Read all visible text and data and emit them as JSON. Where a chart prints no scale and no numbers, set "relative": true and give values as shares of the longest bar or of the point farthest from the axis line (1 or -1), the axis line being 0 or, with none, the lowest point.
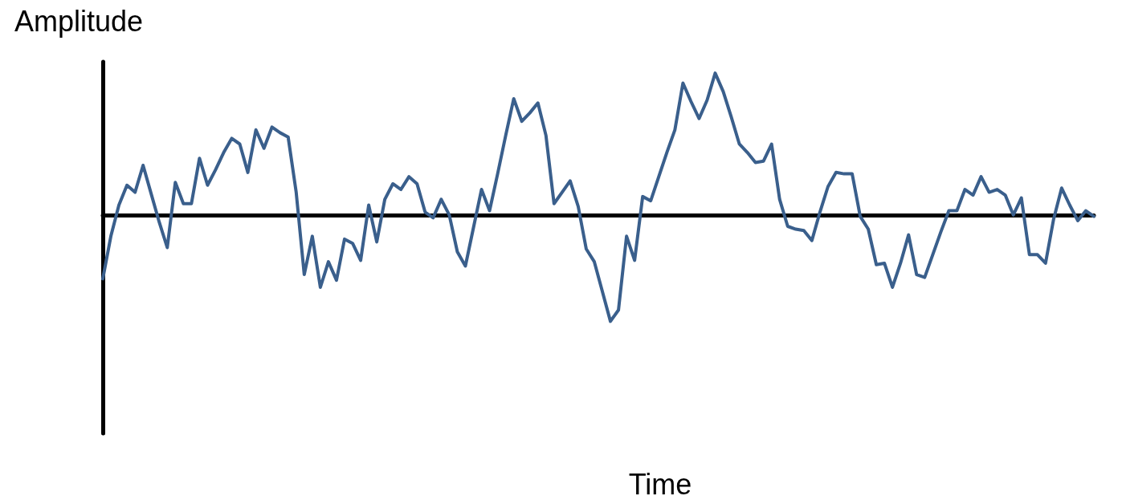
{
  "chart_data": {
    "type": "line",
    "annotations": [
      "Time"
    ],
    "ylabel": "Amplitude",
    "relative": true,
    "grid": false,
    "marker": "none",
    "line_style": "solid",
    "categories": [
      null,
      null,
      null,
      null,
      null,
      null,
      null,
      null,
      null,
      null,
      null,
      null,
      null,
      null,
      null,
      null,
      null,
      null,
      null,
      null,
      null,
      null,
      null,
      null,
      null,
      null,
      null,
      null,
      null,
      null,
      null,
      null,
      null,
      null,
      null,
      null,
      null,
      null,
      null,
      null,
      null,
      null,
      null,
      null,
      null,
      null,
      null,
      null,
      null,
      null,
      null,
      null,
      null,
      null,
      null,
      null,
      null,
      null,
      null,
      null,
      null,
      null,
      null,
      null,
      null,
      null,
      null,
      null,
      null,
      null,
      null,
      null,
      null,
      null,
      null,
      null,
      null,
      null,
      null,
      null,
      null,
      null,
      null,
      null,
      null,
      null,
      null,
      null,
      null,
      null,
      null,
      null,
      null,
      null,
      null,
      null,
      null,
      null,
      null,
      null,
      null,
      null,
      null,
      null,
      null,
      null,
      null,
      null,
      null,
      null,
      null,
      null,
      null,
      null,
      null,
      null,
      null,
      null,
      null,
      null,
      null,
      null,
      null,
      null
    ],
    "series": [
      {
        "color": "#3a5f8c",
        "values": [
          -0.45,
          -0.15,
          0.07,
          0.21,
          0.16,
          0.35,
          0.15,
          -0.05,
          -0.23,
          0.23,
          0.08,
          0.08,
          0.4,
          0.21,
          0.32,
          0.44,
          0.54,
          0.5,
          0.3,
          0.6,
          0.47,
          0.62,
          0.58,
          0.55,
          0.16,
          -0.42,
          -0.15,
          -0.51,
          -0.33,
          -0.46,
          -0.17,
          -0.2,
          -0.32,
          0.07,
          -0.19,
          0.11,
          0.22,
          0.18,
          0.27,
          0.22,
          0.02,
          -0.02,
          0.11,
          0.0,
          -0.26,
          -0.36,
          -0.09,
          0.18,
          0.03,
          0.29,
          0.56,
          0.82,
          0.66,
          0.72,
          0.79,
          0.56,
          0.08,
          0.16,
          0.24,
          0.06,
          -0.24,
          -0.33,
          -0.54,
          -0.75,
          -0.67,
          -0.15,
          -0.32,
          0.13,
          0.1,
          0.27,
          0.44,
          0.6,
          0.93,
          0.8,
          0.68,
          0.81,
          1.0,
          0.87,
          0.69,
          0.5,
          0.44,
          0.37,
          0.38,
          0.5,
          0.11,
          -0.08,
          -0.1,
          -0.11,
          -0.18,
          0.02,
          0.2,
          0.3,
          0.29,
          0.29,
          -0.01,
          -0.1,
          -0.35,
          -0.34,
          -0.51,
          -0.34,
          -0.14,
          -0.42,
          -0.44,
          -0.28,
          -0.12,
          0.03,
          0.03,
          0.18,
          0.14,
          0.27,
          0.16,
          0.18,
          0.14,
          0.0,
          0.12,
          -0.28,
          -0.28,
          -0.34,
          -0.03,
          0.19,
          0.07,
          -0.04,
          0.03,
          -0.01
        ]
      }
    ]
  }
}
